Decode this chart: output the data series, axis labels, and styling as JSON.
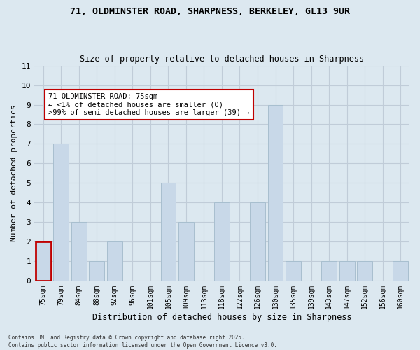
{
  "title_line1": "71, OLDMINSTER ROAD, SHARPNESS, BERKELEY, GL13 9UR",
  "title_line2": "Size of property relative to detached houses in Sharpness",
  "xlabel": "Distribution of detached houses by size in Sharpness",
  "ylabel": "Number of detached properties",
  "categories": [
    "75sqm",
    "79sqm",
    "84sqm",
    "88sqm",
    "92sqm",
    "96sqm",
    "101sqm",
    "105sqm",
    "109sqm",
    "113sqm",
    "118sqm",
    "122sqm",
    "126sqm",
    "130sqm",
    "135sqm",
    "139sqm",
    "143sqm",
    "147sqm",
    "152sqm",
    "156sqm",
    "160sqm"
  ],
  "values": [
    2,
    7,
    3,
    1,
    2,
    0,
    0,
    5,
    3,
    0,
    4,
    0,
    4,
    9,
    1,
    0,
    1,
    1,
    1,
    0,
    1
  ],
  "highlight_index": 0,
  "bar_color": "#c8d8e8",
  "bar_edgecolor": "#a8bfcf",
  "highlight_bar_edgecolor": "#c00000",
  "annotation_box_edgecolor": "#c00000",
  "annotation_text": "71 OLDMINSTER ROAD: 75sqm\n← <1% of detached houses are smaller (0)\n>99% of semi-detached houses are larger (39) →",
  "annotation_fontsize": 7.5,
  "ylim": [
    0,
    11
  ],
  "yticks": [
    0,
    1,
    2,
    3,
    4,
    5,
    6,
    7,
    8,
    9,
    10,
    11
  ],
  "grid_color": "#c0ccd8",
  "background_color": "#dce8f0",
  "fig_background_color": "#dce8f0",
  "footer_text": "Contains HM Land Registry data © Crown copyright and database right 2025.\nContains public sector information licensed under the Open Government Licence v3.0."
}
